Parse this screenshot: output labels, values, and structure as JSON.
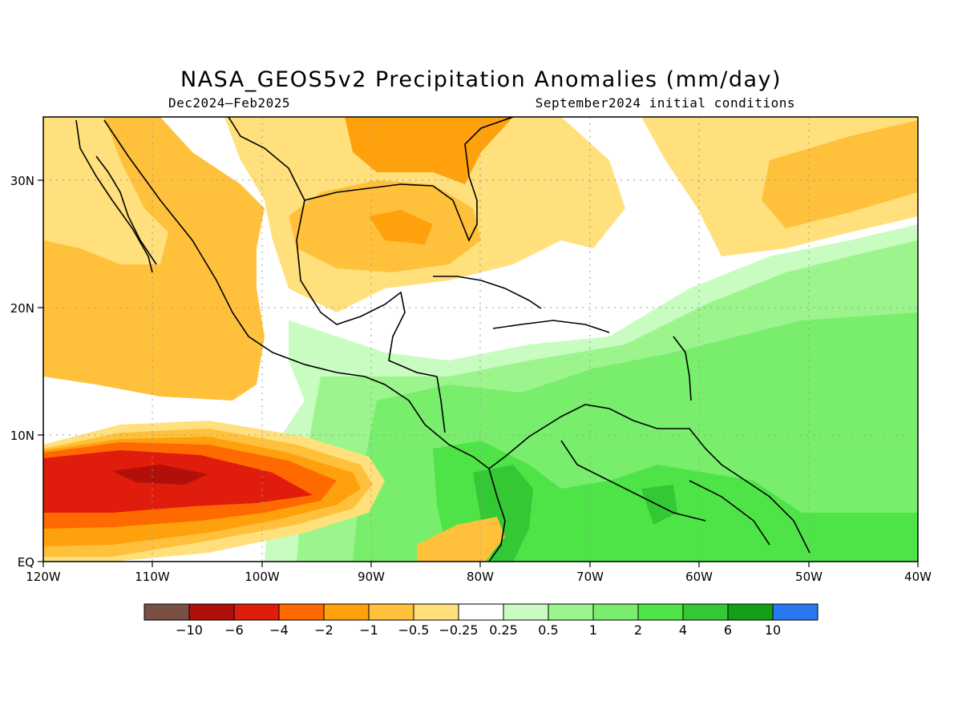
{
  "title": "NASA_GEOS5v2 Precipitation Anomalies (mm/day)",
  "subtitle_left": "Dec2024–Feb2025",
  "subtitle_right": "September2024 initial conditions",
  "lon_ticks": [
    "120W",
    "110W",
    "100W",
    "90W",
    "80W",
    "70W",
    "60W",
    "50W",
    "40W"
  ],
  "lat_ticks": [
    "EQ",
    "10N",
    "20N",
    "30N"
  ],
  "colorbar": {
    "colors": [
      "#7a4f44",
      "#b00f0a",
      "#e01c0c",
      "#ff6a00",
      "#ffa10c",
      "#ffc13c",
      "#ffe07c",
      "#ffffff",
      "#c8fcc0",
      "#9cf48c",
      "#78ee6c",
      "#4ee448",
      "#34c834",
      "#14a014",
      "#2a78f0"
    ],
    "labels": [
      "−10",
      "−6",
      "−4",
      "−2",
      "−1",
      "−0.5",
      "−0.25",
      "0.25",
      "0.5",
      "1",
      "2",
      "4",
      "6",
      "10"
    ]
  },
  "palette": {
    "dark_brown": "#7a4f44",
    "dark_red": "#b00f0a",
    "red": "#e01c0c",
    "orange_red": "#ff6a00",
    "orange": "#ffa10c",
    "light_orange": "#ffc13c",
    "pale_yellow": "#ffe07c",
    "pale_green": "#c8fcc0",
    "light_green": "#9cf48c",
    "green": "#78ee6c",
    "mid_green": "#4ee448",
    "deeper_green": "#34c834",
    "dark_green": "#14a014"
  }
}
